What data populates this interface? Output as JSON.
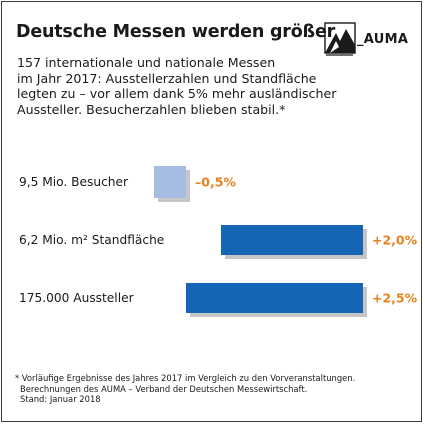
{
  "title": "Deutsche Messen werden größer",
  "logo": {
    "text": "_AUMA",
    "icon": "auma-logo-icon"
  },
  "subtitle_lines": [
    "157 internationale und nationale Messen",
    "im Jahr 2017: Ausstellerzahlen und Standfläche",
    "legten zu – vor allem dank 5% mehr ausländischer",
    "Aussteller. Besucherzahlen blieben stabil.*"
  ],
  "chart_data": {
    "type": "bar",
    "orientation": "horizontal",
    "categories": [
      "9,5 Mio. Besucher",
      "6,2 Mio. m² Standfläche",
      "175.000 Aussteller"
    ],
    "values": [
      -0.5,
      2.0,
      2.5
    ],
    "value_labels": [
      "–0,5%",
      "+2,0%",
      "+2,5%"
    ],
    "colors": {
      "negative": "#a5bde3",
      "positive": "#1465b5",
      "value_label": "#e8831c",
      "shadow": "#c6c6c6"
    },
    "grid": false,
    "legend": "none"
  },
  "footnote_lines": [
    "* Vorläufige Ergebnisse des Jahres 2017 im Vergleich zu den Vorveranstaltungen.",
    "Berechnungen des AUMA – Verband der Deutschen Messewirtschaft.",
    "Stand: Januar 2018"
  ]
}
